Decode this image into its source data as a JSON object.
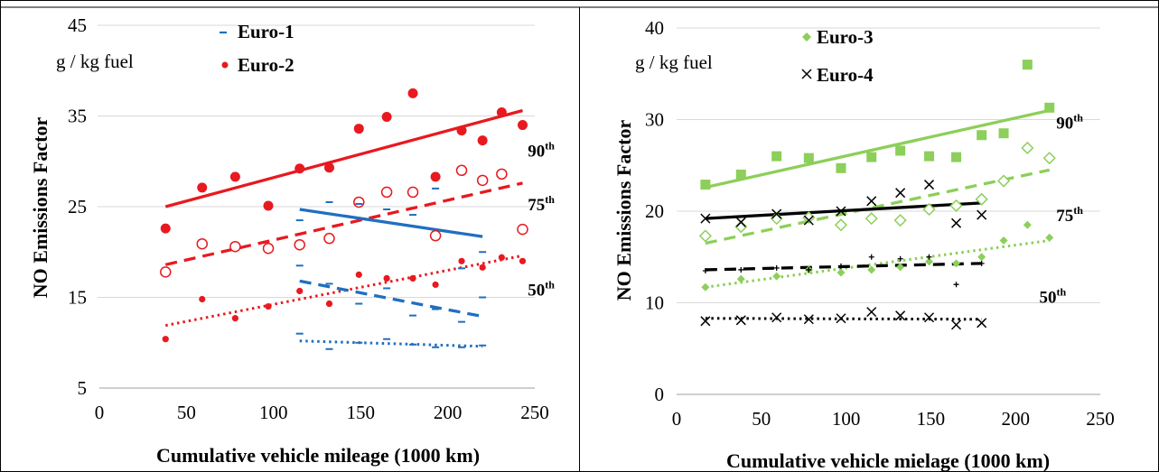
{
  "chart_data": [
    {
      "type": "scatter",
      "xlabel": "Cumulative vehicle mileage (1000 km)",
      "ylabel": "NO Emissions Factor",
      "unit_label": "g / kg fuel",
      "xlim": [
        0,
        250
      ],
      "ylim": [
        5,
        45
      ],
      "xticks": [
        0,
        50,
        100,
        150,
        200,
        250
      ],
      "yticks": [
        5,
        15,
        25,
        35,
        45
      ],
      "grid": "horizontal",
      "legend": [
        {
          "label": "Euro-1",
          "marker": "dash",
          "color": "#1f6fc0"
        },
        {
          "label": "Euro-2",
          "marker": "circle",
          "color": "#e8191f"
        }
      ],
      "percentile_labels": [
        {
          "base": "90",
          "sup": "th",
          "x": 246,
          "y": 30.5
        },
        {
          "base": "75",
          "sup": "th",
          "x": 246,
          "y": 24.6
        },
        {
          "base": "50",
          "sup": "th",
          "x": 246,
          "y": 15.2
        }
      ],
      "series": [
        {
          "name": "Euro-2",
          "percentile": "90",
          "marker": "filled-circle",
          "color": "#e8191f",
          "x": [
            38,
            59,
            78,
            97,
            115,
            132,
            149,
            165,
            180,
            193,
            208,
            220,
            231,
            243
          ],
          "y": [
            22.6,
            27.1,
            28.3,
            25.1,
            29.2,
            29.3,
            33.6,
            34.9,
            37.5,
            28.3,
            33.4,
            32.3,
            35.4,
            34.0
          ],
          "trend": {
            "style": "solid",
            "x": [
              38,
              243
            ],
            "y": [
              25.0,
              35.6
            ]
          }
        },
        {
          "name": "Euro-2",
          "percentile": "75",
          "marker": "open-circle",
          "color": "#e8191f",
          "x": [
            38,
            59,
            78,
            97,
            115,
            132,
            149,
            165,
            180,
            193,
            208,
            220,
            231,
            243
          ],
          "y": [
            17.8,
            20.9,
            20.6,
            20.4,
            20.8,
            21.5,
            25.5,
            26.6,
            26.6,
            21.8,
            29.0,
            27.9,
            28.6,
            22.5
          ],
          "trend": {
            "style": "dashed",
            "x": [
              38,
              243
            ],
            "y": [
              18.6,
              27.6
            ]
          }
        },
        {
          "name": "Euro-2",
          "percentile": "50",
          "marker": "small-filled-circle",
          "color": "#e8191f",
          "x": [
            38,
            59,
            78,
            97,
            115,
            132,
            149,
            165,
            180,
            193,
            208,
            220,
            231,
            243
          ],
          "y": [
            10.4,
            14.8,
            12.7,
            14.0,
            15.7,
            14.3,
            17.5,
            17.1,
            17.1,
            16.4,
            19.0,
            18.3,
            19.4,
            19.0
          ],
          "trend": {
            "style": "dotted",
            "x": [
              38,
              243
            ],
            "y": [
              11.9,
              19.6
            ]
          }
        },
        {
          "name": "Euro-1",
          "percentile": "90",
          "marker": "dash",
          "color": "#1f6fc0",
          "x": [
            115,
            132,
            149,
            165,
            180,
            193,
            208,
            220
          ],
          "y": [
            23.5,
            25.5,
            25.3,
            24.7,
            24.1,
            27.0,
            18.2,
            20.0
          ],
          "trend": {
            "style": "solid",
            "x": [
              115,
              220
            ],
            "y": [
              24.7,
              21.7
            ]
          }
        },
        {
          "name": "Euro-1",
          "percentile": "75",
          "marker": "dash",
          "color": "#1f6fc0",
          "x": [
            115,
            132,
            149,
            165,
            180,
            193,
            208,
            220
          ],
          "y": [
            18.5,
            16.5,
            14.3,
            16.0,
            13.0,
            13.7,
            12.3,
            15.0
          ],
          "trend": {
            "style": "dashed",
            "x": [
              115,
              220
            ],
            "y": [
              16.8,
              12.9
            ]
          }
        },
        {
          "name": "Euro-1",
          "percentile": "50",
          "marker": "dash",
          "color": "#1f6fc0",
          "x": [
            115,
            132,
            149,
            165,
            180,
            193,
            208,
            220
          ],
          "y": [
            11.0,
            9.3,
            10.0,
            10.4,
            9.8,
            9.5,
            9.5,
            9.7
          ],
          "trend": {
            "style": "dotted",
            "x": [
              115,
              220
            ],
            "y": [
              10.2,
              9.6
            ]
          }
        }
      ]
    },
    {
      "type": "scatter",
      "xlabel": "Cumulative vehicle mielage (1000 km)",
      "ylabel": "NO Emissions Factor",
      "unit_label": "g / kg fuel",
      "xlim": [
        0,
        250
      ],
      "ylim": [
        0,
        40
      ],
      "xticks": [
        0,
        50,
        100,
        150,
        200,
        250
      ],
      "yticks": [
        0,
        10,
        20,
        30,
        40
      ],
      "grid": "horizontal",
      "legend": [
        {
          "label": "Euro-3",
          "marker": "diamond",
          "color": "#8ccf5a"
        },
        {
          "label": "Euro-4",
          "marker": "cross",
          "color": "#000000"
        }
      ],
      "percentile_labels": [
        {
          "base": "90",
          "sup": "th",
          "x": 224,
          "y": 29.0
        },
        {
          "base": "75",
          "sup": "th",
          "x": 224,
          "y": 18.9
        },
        {
          "base": "50",
          "sup": "th",
          "x": 214,
          "y": 10.0
        }
      ],
      "series": [
        {
          "name": "Euro-3",
          "percentile": "90",
          "marker": "filled-square",
          "color": "#8ccf5a",
          "x": [
            17,
            38,
            59,
            78,
            97,
            115,
            132,
            149,
            165,
            180,
            193,
            207,
            220
          ],
          "y": [
            22.9,
            24.0,
            26.0,
            25.8,
            24.7,
            25.9,
            26.6,
            26.0,
            25.9,
            28.3,
            28.5,
            36.0,
            31.3
          ],
          "trend": {
            "style": "solid",
            "x": [
              17,
              220
            ],
            "y": [
              22.6,
              31.0
            ]
          }
        },
        {
          "name": "Euro-3",
          "percentile": "75",
          "marker": "open-diamond",
          "color": "#8ccf5a",
          "x": [
            17,
            38,
            59,
            78,
            97,
            115,
            132,
            149,
            165,
            180,
            193,
            207,
            220
          ],
          "y": [
            17.3,
            18.3,
            19.2,
            19.3,
            18.5,
            19.2,
            19.0,
            20.2,
            20.6,
            21.3,
            23.3,
            26.9,
            25.8
          ],
          "trend": {
            "style": "dashed",
            "x": [
              17,
              220
            ],
            "y": [
              16.5,
              24.5
            ]
          }
        },
        {
          "name": "Euro-3",
          "percentile": "50",
          "marker": "filled-diamond",
          "color": "#8ccf5a",
          "x": [
            17,
            38,
            59,
            78,
            97,
            115,
            132,
            149,
            165,
            180,
            193,
            207,
            220
          ],
          "y": [
            11.7,
            12.6,
            12.9,
            13.6,
            13.3,
            13.6,
            13.9,
            14.5,
            14.3,
            15.0,
            16.8,
            18.5,
            17.1
          ],
          "trend": {
            "style": "dotted",
            "x": [
              17,
              220
            ],
            "y": [
              11.7,
              16.8
            ]
          }
        },
        {
          "name": "Euro-4",
          "percentile": "90",
          "marker": "cross",
          "color": "#000000",
          "x": [
            17,
            38,
            59,
            78,
            97,
            115,
            132,
            149,
            165,
            180
          ],
          "y": [
            19.2,
            18.8,
            19.7,
            19.0,
            20.0,
            21.1,
            22.0,
            22.9,
            18.7,
            19.6
          ],
          "trend": {
            "style": "solid",
            "x": [
              17,
              180
            ],
            "y": [
              19.2,
              20.9
            ]
          }
        },
        {
          "name": "Euro-4",
          "percentile": "75",
          "marker": "plus",
          "color": "#000000",
          "x": [
            17,
            38,
            59,
            78,
            97,
            115,
            132,
            149,
            165,
            180
          ],
          "y": [
            13.5,
            13.6,
            13.8,
            13.6,
            14.0,
            15.0,
            14.8,
            15.0,
            12.0,
            14.3
          ],
          "trend": {
            "style": "dashed",
            "x": [
              17,
              180
            ],
            "y": [
              13.6,
              14.3
            ]
          }
        },
        {
          "name": "Euro-4",
          "percentile": "50",
          "marker": "cross",
          "color": "#000000",
          "x": [
            17,
            38,
            59,
            78,
            97,
            115,
            132,
            149,
            165,
            180
          ],
          "y": [
            8.0,
            8.1,
            8.4,
            8.2,
            8.3,
            9.0,
            8.6,
            8.4,
            7.6,
            7.8
          ],
          "trend": {
            "style": "dotted",
            "x": [
              17,
              180
            ],
            "y": [
              8.3,
              8.2
            ]
          }
        }
      ]
    }
  ]
}
